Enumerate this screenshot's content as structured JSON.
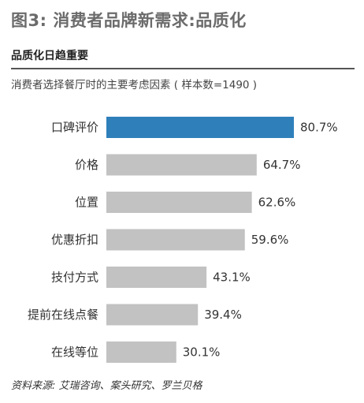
{
  "figure_title": "图3: 消费者品牌新需求:品质化",
  "subheading": "品质化日趋重要",
  "caption": "消费者选择餐厅时的主要考虑因素 ( 样本数=1490 )",
  "source": "资料来源: 艾瑞咨询、案头研究、罗兰贝格",
  "colors": {
    "highlight": "#2f7fba",
    "bar": "#c2c2c2",
    "text": "#333333"
  },
  "chart_data": {
    "type": "bar",
    "orientation": "horizontal",
    "categories": [
      "口碑评价",
      "价格",
      "位置",
      "优惠折扣",
      "技付方式",
      "提前在线点餐",
      "在线等位"
    ],
    "values": [
      80.7,
      64.7,
      62.6,
      59.6,
      43.1,
      39.4,
      30.1
    ],
    "value_labels": [
      "80.7%",
      "64.7%",
      "62.6%",
      "59.6%",
      "43.1%",
      "39.4%",
      "30.1%"
    ],
    "highlighted_index": 0,
    "xlim": [
      0,
      80.7
    ],
    "grid": false,
    "legend": "none"
  }
}
